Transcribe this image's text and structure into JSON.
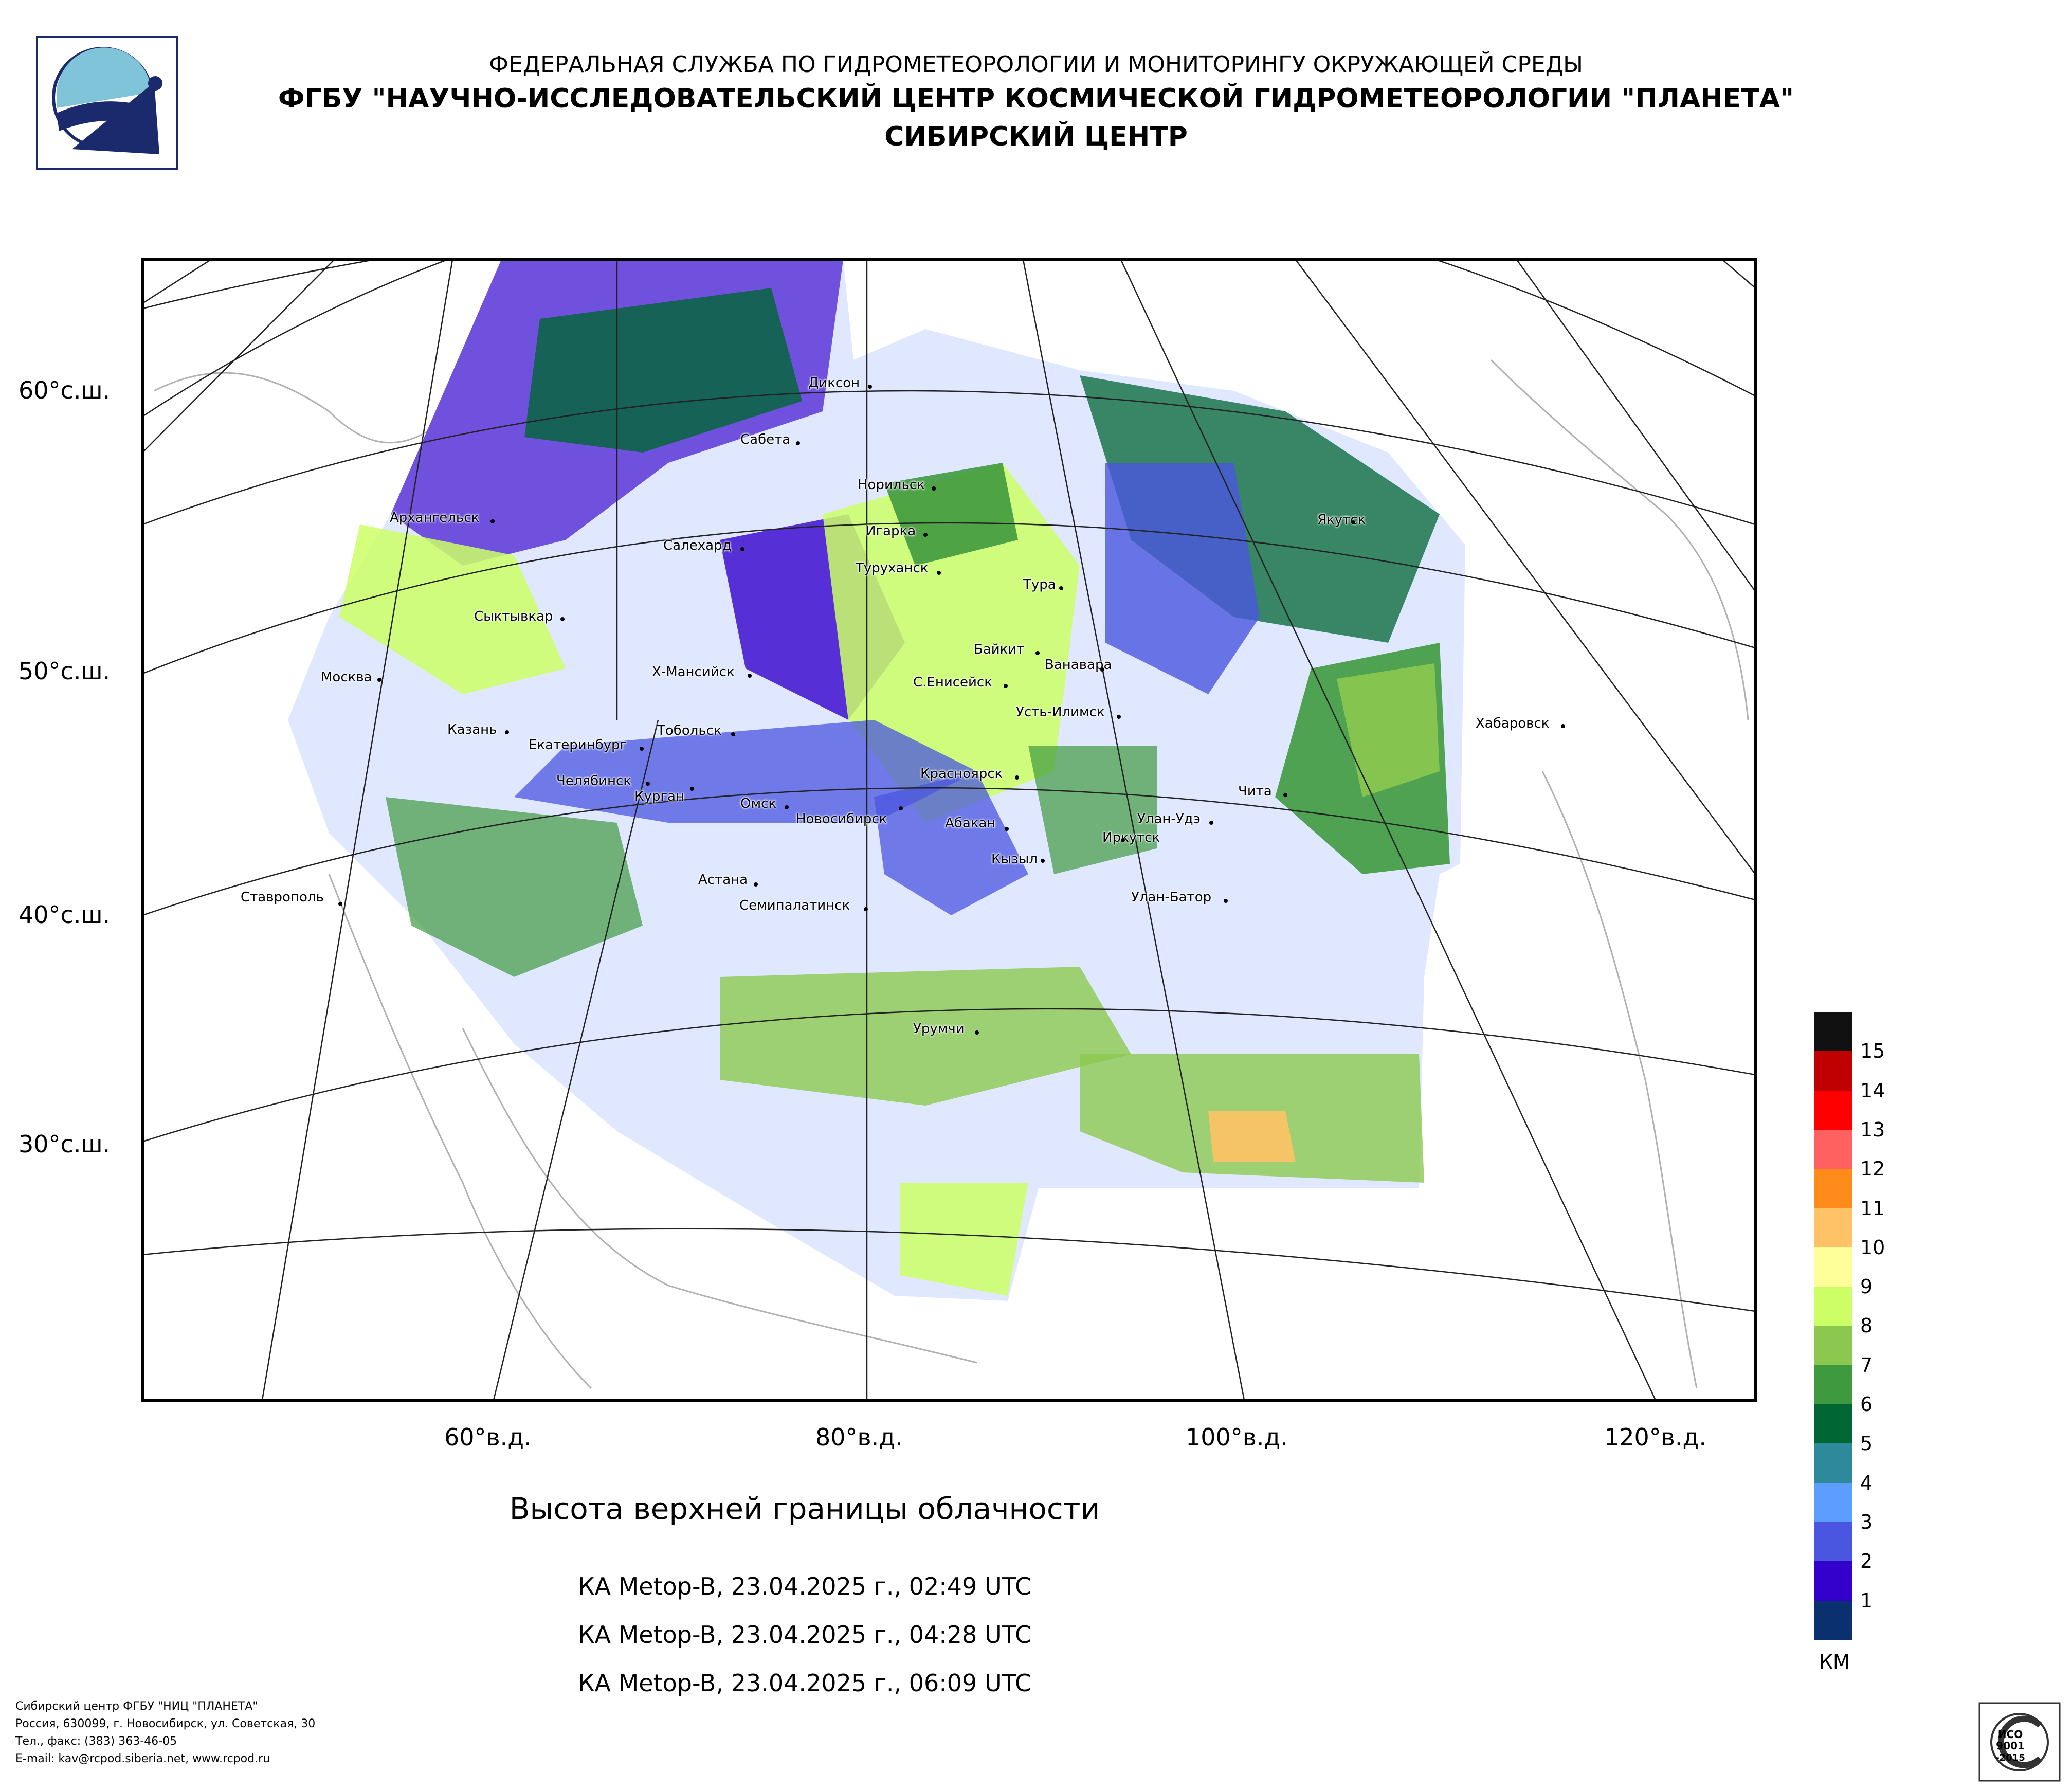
{
  "header": {
    "agency": "ФЕДЕРАЛЬНАЯ СЛУЖБА ПО ГИДРОМЕТЕОРОЛОГИИ И МОНИТОРИНГУ ОКРУЖАЮЩЕЙ СРЕДЫ",
    "institute": "ФГБУ \"НАУЧНО-ИССЛЕДОВАТЕЛЬСКИЙ ЦЕНТР КОСМИЧЕСКОЙ ГИДРОМЕТЕОРОЛОГИИ \"ПЛАНЕТА\"",
    "center": "СИБИРСКИЙ ЦЕНТР"
  },
  "map": {
    "title": "Высота верхней границы облачности",
    "latitude_labels": [
      "60°с.ш.",
      "50°с.ш.",
      "40°с.ш.",
      "30°с.ш."
    ],
    "longitude_labels": [
      "60°в.д.",
      "80°в.д.",
      "100°в.д.",
      "120°в.д."
    ],
    "cities": [
      {
        "name": "Диксон"
      },
      {
        "name": "Сабета"
      },
      {
        "name": "Норильск"
      },
      {
        "name": "Архангельск"
      },
      {
        "name": "Игарка"
      },
      {
        "name": "Салехард"
      },
      {
        "name": "Якутск"
      },
      {
        "name": "Туруханск"
      },
      {
        "name": "Тура"
      },
      {
        "name": "Сыктывкар"
      },
      {
        "name": "Байкит"
      },
      {
        "name": "Ванавара"
      },
      {
        "name": "Москва"
      },
      {
        "name": "Х-Мансийск"
      },
      {
        "name": "С.Енисейск"
      },
      {
        "name": "Усть-Илимск"
      },
      {
        "name": "Хабаровск"
      },
      {
        "name": "Казань"
      },
      {
        "name": "Тобольск"
      },
      {
        "name": "Екатеринбург"
      },
      {
        "name": "Красноярск"
      },
      {
        "name": "Челябинск"
      },
      {
        "name": "Курган"
      },
      {
        "name": "Чита"
      },
      {
        "name": "Омск"
      },
      {
        "name": "Новосибирск"
      },
      {
        "name": "Абакан"
      },
      {
        "name": "Улан-Удэ"
      },
      {
        "name": "Иркутск"
      },
      {
        "name": "Кызыл"
      },
      {
        "name": "Астана"
      },
      {
        "name": "Ставрополь"
      },
      {
        "name": "Семипалатинск"
      },
      {
        "name": "Улан-Батор"
      },
      {
        "name": "Урумчи"
      }
    ]
  },
  "passes": [
    "КА Metop-B, 23.04.2025 г., 02:49 UTC",
    "КА Metop-B, 23.04.2025 г., 04:28 UTC",
    "КА Metop-B, 23.04.2025 г., 06:09 UTC"
  ],
  "legend": {
    "units": "КМ",
    "items": [
      {
        "label": "15",
        "color": "#c00000"
      },
      {
        "label": "14",
        "color": "#ff0000"
      },
      {
        "label": "13",
        "color": "#ff6060"
      },
      {
        "label": "12",
        "color": "#ff8c1a"
      },
      {
        "label": "11",
        "color": "#ffc266"
      },
      {
        "label": "10",
        "color": "#ffff99"
      },
      {
        "label": "9",
        "color": "#ccff66"
      },
      {
        "label": "8",
        "color": "#8cc850"
      },
      {
        "label": "7",
        "color": "#3f9a3f"
      },
      {
        "label": "6",
        "color": "#006633"
      },
      {
        "label": "5",
        "color": "#2e8a9a"
      },
      {
        "label": "4",
        "color": "#5c9eff"
      },
      {
        "label": "3",
        "color": "#4a56e0"
      },
      {
        "label": "2",
        "color": "#3300cc"
      },
      {
        "label": "1",
        "color": "#0a3070"
      }
    ],
    "top_color": "#111111"
  },
  "footer": {
    "line1": "Сибирский центр ФГБУ \"НИЦ \"ПЛАНЕТА\"",
    "line2": "Россия, 630099, г. Новосибирск, ул. Советская, 30",
    "line3": "Тел., факс: (383) 363-46-05",
    "line4": "E-mail: kav@rcpod.siberia.net, www.rcpod.ru"
  },
  "iso_badge": {
    "text1": "ИСО",
    "text2": "9001",
    "text3": "-2015",
    "ring": "ДОБРОСОВЕСТНЫЙ ПОСТАВЩИК"
  },
  "colors": {
    "frame": "#000000",
    "coast": "#b0b0b0",
    "graticule": "#222222"
  }
}
